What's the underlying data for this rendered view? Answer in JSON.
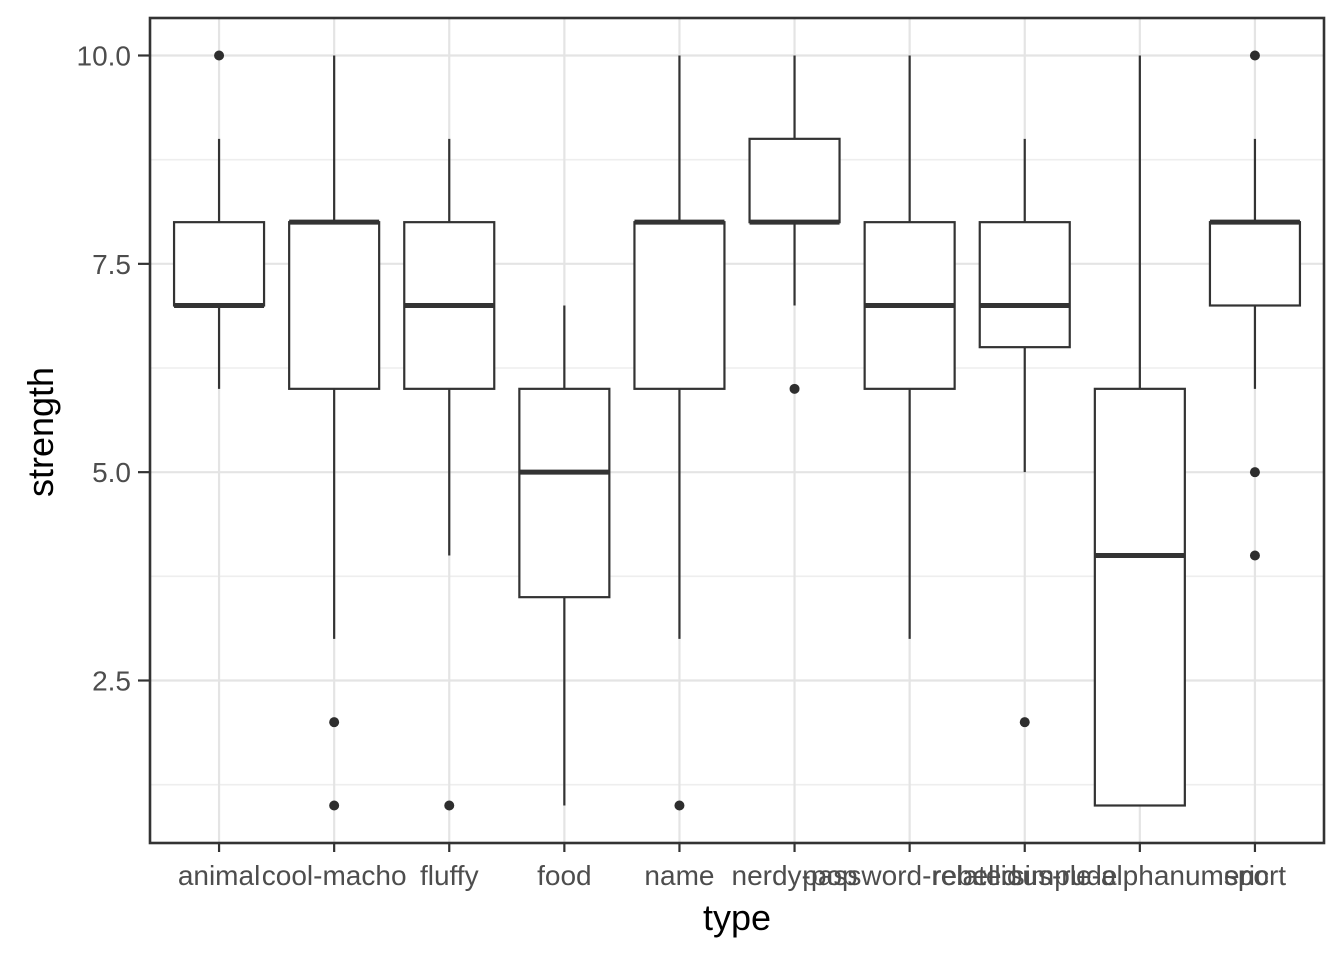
{
  "chart_data": {
    "type": "boxplot",
    "title": "",
    "xlabel": "type",
    "ylabel": "strength",
    "legend": "none",
    "grid": true,
    "categories": [
      "animal",
      "cool-macho",
      "fluffy",
      "food",
      "name",
      "nerdy-pop",
      "password-related",
      "rebellious-rude",
      "simple-alphanumeric",
      "sport"
    ],
    "boxes": [
      {
        "category": "animal",
        "whisker_low": 6,
        "q1": 7,
        "median": 7,
        "q3": 8,
        "whisker_high": 9,
        "outliers": [
          10
        ]
      },
      {
        "category": "cool-macho",
        "whisker_low": 3,
        "q1": 6,
        "median": 8,
        "q3": 8,
        "whisker_high": 10,
        "outliers": [
          2,
          1
        ]
      },
      {
        "category": "fluffy",
        "whisker_low": 4,
        "q1": 6,
        "median": 7,
        "q3": 8,
        "whisker_high": 9,
        "outliers": [
          1
        ]
      },
      {
        "category": "food",
        "whisker_low": 1,
        "q1": 3.5,
        "median": 5,
        "q3": 6,
        "whisker_high": 7,
        "outliers": []
      },
      {
        "category": "name",
        "whisker_low": 3,
        "q1": 6,
        "median": 8,
        "q3": 8,
        "whisker_high": 10,
        "outliers": [
          1
        ]
      },
      {
        "category": "nerdy-pop",
        "whisker_low": 7,
        "q1": 8,
        "median": 8,
        "q3": 9,
        "whisker_high": 10,
        "outliers": [
          6
        ]
      },
      {
        "category": "password-related",
        "whisker_low": 3,
        "q1": 6,
        "median": 7,
        "q3": 8,
        "whisker_high": 10,
        "outliers": []
      },
      {
        "category": "rebellious-rude",
        "whisker_low": 5,
        "q1": 6.5,
        "median": 7,
        "q3": 8,
        "whisker_high": 9,
        "outliers": [
          2
        ]
      },
      {
        "category": "simple-alphanumeric",
        "whisker_low": 1,
        "q1": 1,
        "median": 4,
        "q3": 6,
        "whisker_high": 10,
        "outliers": []
      },
      {
        "category": "sport",
        "whisker_low": 6,
        "q1": 7,
        "median": 8,
        "q3": 8,
        "whisker_high": 9,
        "outliers": [
          10,
          5,
          4
        ]
      }
    ],
    "y_axis": {
      "range": [
        0.55,
        10.45
      ],
      "ticks": [
        2.5,
        5.0,
        7.5,
        10.0
      ],
      "tick_labels": [
        "2.5",
        "5.0",
        "7.5",
        "10.0"
      ],
      "minor_ticks": [
        1.25,
        3.75,
        6.25,
        8.75
      ]
    },
    "colors": {
      "background": "#FFFFFF",
      "panel_border": "#333333",
      "grid_major": "#E4E4E4",
      "grid_minor": "#EEEEEE",
      "box_stroke": "#333333",
      "box_fill": "#FFFFFF",
      "median": "#333333",
      "outlier": "#2E2E2E",
      "tick_mark": "#333333",
      "axis_text": "#4D4D4D",
      "axis_title": "#000000"
    }
  }
}
